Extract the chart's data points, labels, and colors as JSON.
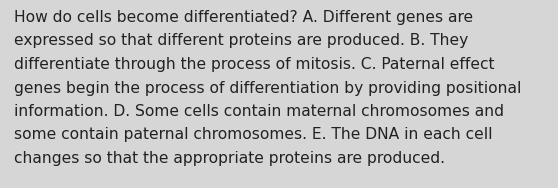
{
  "background_color": "#d6d6d6",
  "text_color": "#222222",
  "font_size": 11.2,
  "text": "How do cells become differentiated? A. Different genes are\nexpressed so that different proteins are produced. B. They\ndifferentiate through the process of mitosis. C. Paternal effect\ngenes begin the process of differentiation by providing positional\ninformation. D. Some cells contain maternal chromosomes and\nsome contain paternal chromosomes. E. The DNA in each cell\nchanges so that the appropriate proteins are produced."
}
